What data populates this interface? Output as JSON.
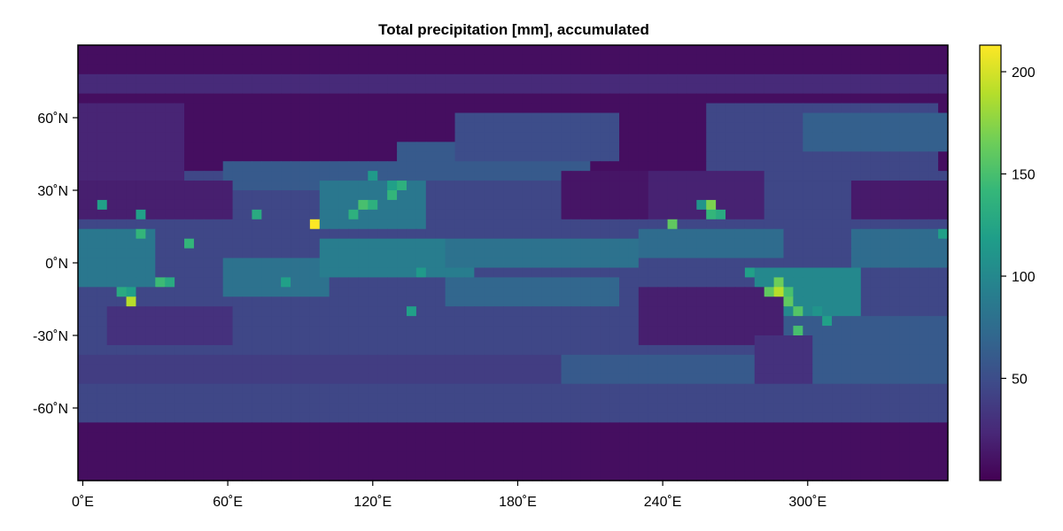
{
  "chart_data": {
    "type": "heatmap",
    "title": "Total precipitation [mm], accumulated",
    "xlabel": "",
    "ylabel": "",
    "x_range": [
      -2,
      358
    ],
    "y_range": [
      -90,
      90
    ],
    "x_ticks": [
      {
        "value": 0,
        "label": "0˚E"
      },
      {
        "value": 60,
        "label": "60˚E"
      },
      {
        "value": 120,
        "label": "120˚E"
      },
      {
        "value": 180,
        "label": "180˚E"
      },
      {
        "value": 240,
        "label": "240˚E"
      },
      {
        "value": 300,
        "label": "300˚E"
      }
    ],
    "y_ticks": [
      {
        "value": 60,
        "label": "60˚N"
      },
      {
        "value": 30,
        "label": "30˚N"
      },
      {
        "value": 0,
        "label": "0˚N"
      },
      {
        "value": -30,
        "label": "-30˚N"
      },
      {
        "value": -60,
        "label": "-60˚N"
      }
    ],
    "colormap": [
      "#440154",
      "#482878",
      "#3e4a89",
      "#31688e",
      "#26828e",
      "#1f9e89",
      "#35b779",
      "#6ece58",
      "#b5de2b",
      "#fde725"
    ],
    "colorbar": {
      "range": [
        0,
        213
      ],
      "ticks": [
        {
          "value": 50,
          "label": "50"
        },
        {
          "value": 100,
          "label": "100"
        },
        {
          "value": 150,
          "label": "150"
        },
        {
          "value": 200,
          "label": "200"
        }
      ]
    },
    "grid": false,
    "grid_resolution_deg": 4,
    "background_value": 8,
    "regions": [
      {
        "lon": [
          -2,
          358
        ],
        "lat": [
          70,
          78
        ],
        "value": 25
      },
      {
        "lon": [
          -2,
          358
        ],
        "lat": [
          -66,
          -48
        ],
        "value": 45
      },
      {
        "lon": [
          -2,
          358
        ],
        "lat": [
          -48,
          -36
        ],
        "value": 38
      },
      {
        "lon": [
          -2,
          358
        ],
        "lat": [
          -36,
          36
        ],
        "value": 45
      },
      {
        "lon": [
          -2,
          40
        ],
        "lat": [
          36,
          66
        ],
        "value": 22
      },
      {
        "lon": [
          130,
          210
        ],
        "lat": [
          36,
          50
        ],
        "value": 60
      },
      {
        "lon": [
          155,
          220
        ],
        "lat": [
          42,
          60
        ],
        "value": 50
      },
      {
        "lon": [
          260,
          355
        ],
        "lat": [
          36,
          64
        ],
        "value": 45
      },
      {
        "lon": [
          300,
          358
        ],
        "lat": [
          46,
          60
        ],
        "value": 65
      },
      {
        "lon": [
          60,
          130
        ],
        "lat": [
          30,
          40
        ],
        "value": 60
      },
      {
        "lon": [
          100,
          140
        ],
        "lat": [
          16,
          32
        ],
        "value": 85
      },
      {
        "lon": [
          0,
          30
        ],
        "lat": [
          -10,
          14
        ],
        "value": 85
      },
      {
        "lon": [
          60,
          100
        ],
        "lat": [
          -14,
          2
        ],
        "value": 80
      },
      {
        "lon": [
          100,
          160
        ],
        "lat": [
          -6,
          10
        ],
        "value": 90
      },
      {
        "lon": [
          150,
          230
        ],
        "lat": [
          0,
          10
        ],
        "value": 80
      },
      {
        "lon": [
          150,
          220
        ],
        "lat": [
          -16,
          -6
        ],
        "value": 70
      },
      {
        "lon": [
          230,
          290
        ],
        "lat": [
          4,
          14
        ],
        "value": 75
      },
      {
        "lon": [
          280,
          320
        ],
        "lat": [
          -24,
          -2
        ],
        "value": 100
      },
      {
        "lon": [
          320,
          358
        ],
        "lat": [
          0,
          14
        ],
        "value": 75
      },
      {
        "lon": [
          280,
          358
        ],
        "lat": [
          -36,
          -24
        ],
        "value": 60
      },
      {
        "lon": [
          200,
          360
        ],
        "lat": [
          -48,
          -38
        ],
        "value": 60
      },
      {
        "lon": [
          220,
          280
        ],
        "lat": [
          20,
          36
        ],
        "value": 20
      },
      {
        "lon": [
          200,
          235
        ],
        "lat": [
          20,
          36
        ],
        "value": 12
      },
      {
        "lon": [
          320,
          358
        ],
        "lat": [
          20,
          34
        ],
        "value": 15
      },
      {
        "lon": [
          0,
          60
        ],
        "lat": [
          20,
          34
        ],
        "value": 18
      },
      {
        "lon": [
          10,
          60
        ],
        "lat": [
          -34,
          -20
        ],
        "value": 30
      },
      {
        "lon": [
          230,
          290
        ],
        "lat": [
          -34,
          -10
        ],
        "value": 18
      },
      {
        "lon": [
          280,
          300
        ],
        "lat": [
          -48,
          -30
        ],
        "value": 30
      }
    ],
    "cells": [
      {
        "lon": 94,
        "lat": 16,
        "value": 213
      },
      {
        "lon": 288,
        "lat": -12,
        "value": 190
      },
      {
        "lon": 288,
        "lat": -8,
        "value": 165
      },
      {
        "lon": 292,
        "lat": -16,
        "value": 160
      },
      {
        "lon": 292,
        "lat": -12,
        "value": 150
      },
      {
        "lon": 296,
        "lat": -20,
        "value": 155
      },
      {
        "lon": 296,
        "lat": -28,
        "value": 150
      },
      {
        "lon": 284,
        "lat": -12,
        "value": 160
      },
      {
        "lon": 20,
        "lat": -16,
        "value": 190
      },
      {
        "lon": 16,
        "lat": -12,
        "value": 130
      },
      {
        "lon": 20,
        "lat": -12,
        "value": 120
      },
      {
        "lon": 30,
        "lat": -6,
        "value": 145
      },
      {
        "lon": 34,
        "lat": -6,
        "value": 130
      },
      {
        "lon": 42,
        "lat": 10,
        "value": 140
      },
      {
        "lon": 22,
        "lat": 14,
        "value": 140
      },
      {
        "lon": 24,
        "lat": 20,
        "value": 120
      },
      {
        "lon": 8,
        "lat": 24,
        "value": 120
      },
      {
        "lon": 72,
        "lat": 20,
        "value": 130
      },
      {
        "lon": 114,
        "lat": 24,
        "value": 150
      },
      {
        "lon": 118,
        "lat": 24,
        "value": 135
      },
      {
        "lon": 110,
        "lat": 20,
        "value": 135
      },
      {
        "lon": 128,
        "lat": 28,
        "value": 140
      },
      {
        "lon": 132,
        "lat": 32,
        "value": 135
      },
      {
        "lon": 128,
        "lat": 32,
        "value": 120
      },
      {
        "lon": 120,
        "lat": 36,
        "value": 115
      },
      {
        "lon": 244,
        "lat": 16,
        "value": 160
      },
      {
        "lon": 258,
        "lat": 24,
        "value": 170
      },
      {
        "lon": 258,
        "lat": 20,
        "value": 140
      },
      {
        "lon": 262,
        "lat": 20,
        "value": 130
      },
      {
        "lon": 254,
        "lat": 24,
        "value": 110
      },
      {
        "lon": 308,
        "lat": -24,
        "value": 120
      },
      {
        "lon": 304,
        "lat": -20,
        "value": 110
      },
      {
        "lon": 134,
        "lat": -18,
        "value": 120
      },
      {
        "lon": 140,
        "lat": -4,
        "value": 115
      },
      {
        "lon": 82,
        "lat": -8,
        "value": 120
      },
      {
        "lon": 274,
        "lat": -4,
        "value": 120
      },
      {
        "lon": 358,
        "lat": 10,
        "value": 130
      },
      {
        "lon": 354,
        "lat": 14,
        "value": 120
      }
    ]
  }
}
